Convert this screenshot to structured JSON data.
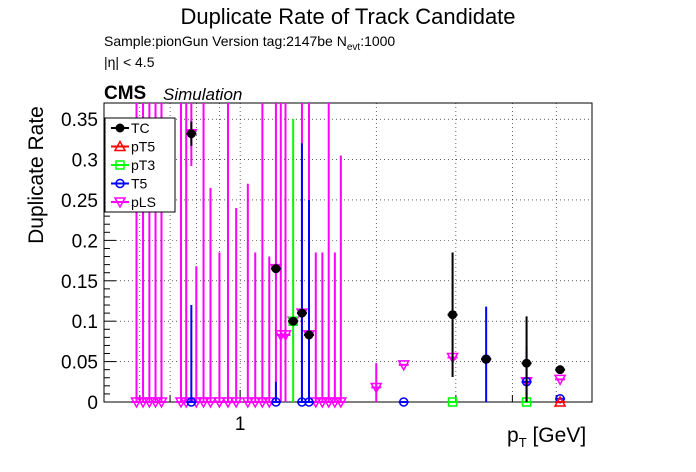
{
  "title": "Duplicate Rate of Track Candidate",
  "sample_prefix": "Sample:pionGun   Version tag:2147be  N",
  "sample_sub": "evt",
  "sample_suffix": ":1000",
  "eta": "|η| < 4.5",
  "cms": "CMS",
  "simulation": "Simulation",
  "ylabel": "Duplicate Rate",
  "xlabel_main": "p",
  "xlabel_sub": "T",
  "xlabel_unit": " [GeV]",
  "colors": {
    "TC": "#000000",
    "pT5": "#ff0000",
    "pT3": "#00ff00",
    "T5": "#0000ff",
    "pLS": "#ff00ff",
    "ghost": "#808080"
  },
  "chart_data": {
    "type": "scatter",
    "xscale": "log",
    "xlim": [
      0.5,
      6.0
    ],
    "ylim": [
      0,
      0.37
    ],
    "yticks": [
      0,
      0.05,
      0.1,
      0.15,
      0.2,
      0.25,
      0.3,
      0.35
    ],
    "ytick_labels": [
      "0",
      "0.05",
      "0.1",
      "0.15",
      "0.2",
      "0.25",
      "0.3",
      "0.35"
    ],
    "xtick_labels": [
      {
        "value": 1,
        "label": "1"
      }
    ],
    "legend_position": "top-left",
    "legend": [
      "TC",
      "pT5",
      "pT3",
      "T5",
      "pLS"
    ],
    "series": [
      {
        "name": "TC",
        "color": "#000000",
        "marker": "circle-filled",
        "points": [
          {
            "x": 0.78,
            "y": 0.332,
            "err": 0.015
          },
          {
            "x": 1.2,
            "y": 0.165,
            "err": 0.0
          },
          {
            "x": 1.31,
            "y": 0.1,
            "err": 0.0
          },
          {
            "x": 1.37,
            "y": 0.11,
            "err": 0.0
          },
          {
            "x": 1.42,
            "y": 0.083,
            "err": 0.0
          },
          {
            "x": 2.95,
            "y": 0.108,
            "err": 0.077
          },
          {
            "x": 3.5,
            "y": 0.053,
            "err": 0.0
          },
          {
            "x": 4.3,
            "y": 0.048,
            "err": 0.058
          },
          {
            "x": 5.1,
            "y": 0.04,
            "err": 0.0
          }
        ]
      },
      {
        "name": "pT5",
        "color": "#ff0000",
        "marker": "triangle-open",
        "points": [
          {
            "x": 5.1,
            "y": 0.0,
            "err": 0.0
          }
        ]
      },
      {
        "name": "pT3",
        "color": "#00ff00",
        "marker": "square-open",
        "points": [
          {
            "x": 1.31,
            "y": 0.1,
            "err": 0.25
          },
          {
            "x": 2.95,
            "y": 0.0,
            "err": 0.0
          },
          {
            "x": 4.3,
            "y": 0.0,
            "err": 0.0
          }
        ]
      },
      {
        "name": "T5",
        "color": "#0000ff",
        "marker": "circle-open",
        "points": [
          {
            "x": 0.78,
            "y": 0.0,
            "err": 0.12
          },
          {
            "x": 1.2,
            "y": 0.0,
            "err": 0.025
          },
          {
            "x": 1.37,
            "y": 0.0,
            "err": 0.32
          },
          {
            "x": 1.42,
            "y": 0.0,
            "err": 0.25
          },
          {
            "x": 2.3,
            "y": 0.0,
            "err": 0.0
          },
          {
            "x": 3.5,
            "y": 0.053,
            "err": 0.065
          },
          {
            "x": 4.3,
            "y": 0.025,
            "err": 0.043
          },
          {
            "x": 5.1,
            "y": 0.004,
            "err": 0.0
          }
        ]
      },
      {
        "name": "pLS",
        "color": "#ff00ff",
        "marker": "triangle-down-open",
        "points": [
          {
            "x": 0.59,
            "y": 0.0,
            "err": 0.37
          },
          {
            "x": 0.61,
            "y": 0.0,
            "err": 0.37
          },
          {
            "x": 0.63,
            "y": 0.0,
            "err": 0.37
          },
          {
            "x": 0.65,
            "y": 0.0,
            "err": 0.37
          },
          {
            "x": 0.67,
            "y": 0.0,
            "err": 0.37
          },
          {
            "x": 0.74,
            "y": 0.0,
            "err": 0.37
          },
          {
            "x": 0.76,
            "y": 0.0,
            "err": 0.37
          },
          {
            "x": 0.78,
            "y": 0.332,
            "err": 0.04
          },
          {
            "x": 0.8,
            "y": 0.0,
            "err": 0.168
          },
          {
            "x": 0.83,
            "y": 0.0,
            "err": 0.37
          },
          {
            "x": 0.86,
            "y": 0.0,
            "err": 0.265
          },
          {
            "x": 0.9,
            "y": 0.0,
            "err": 0.185
          },
          {
            "x": 0.94,
            "y": 0.0,
            "err": 0.37
          },
          {
            "x": 0.98,
            "y": 0.0,
            "err": 0.24
          },
          {
            "x": 1.04,
            "y": 0.0,
            "err": 0.27
          },
          {
            "x": 1.08,
            "y": 0.0,
            "err": 0.185
          },
          {
            "x": 1.12,
            "y": 0.0,
            "err": 0.37
          },
          {
            "x": 1.16,
            "y": 0.0,
            "err": 0.18
          },
          {
            "x": 1.2,
            "y": 0.165,
            "err": 0.205
          },
          {
            "x": 1.23,
            "y": 0.083,
            "err": 0.287
          },
          {
            "x": 1.26,
            "y": 0.083,
            "err": 0.287
          },
          {
            "x": 1.31,
            "y": 0.1,
            "err": 0.0
          },
          {
            "x": 1.37,
            "y": 0.11,
            "err": 0.26
          },
          {
            "x": 1.42,
            "y": 0.083,
            "err": 0.287
          },
          {
            "x": 1.47,
            "y": 0.0,
            "err": 0.185
          },
          {
            "x": 1.52,
            "y": 0.0,
            "err": 0.185
          },
          {
            "x": 1.57,
            "y": 0.0,
            "err": 0.37
          },
          {
            "x": 1.62,
            "y": 0.0,
            "err": 0.185
          },
          {
            "x": 1.67,
            "y": 0.0,
            "err": 0.305
          },
          {
            "x": 2.0,
            "y": 0.018,
            "err": 0.03
          },
          {
            "x": 2.3,
            "y": 0.046,
            "err": 0.0
          },
          {
            "x": 2.95,
            "y": 0.055,
            "err": 0.0
          },
          {
            "x": 4.3,
            "y": 0.025,
            "err": 0.0
          },
          {
            "x": 5.1,
            "y": 0.028,
            "err": 0.0
          }
        ]
      }
    ]
  }
}
